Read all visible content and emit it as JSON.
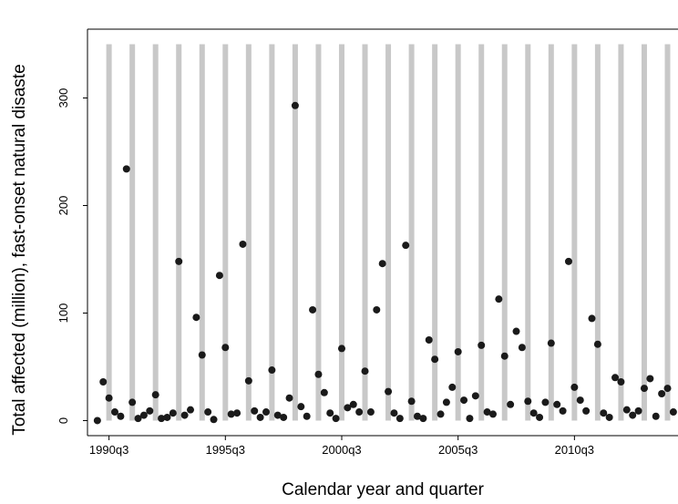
{
  "chart_data": {
    "type": "scatter",
    "x_label": "Calendar year and quarter",
    "y_label": "Total affected (million), fast-onset natural disaste",
    "x": [
      120,
      121,
      122,
      123,
      124,
      125,
      126,
      127,
      128,
      129,
      130,
      131,
      132,
      133,
      134,
      135,
      136,
      137,
      138,
      139,
      140,
      141,
      142,
      143,
      144,
      145,
      146,
      147,
      148,
      149,
      150,
      151,
      152,
      153,
      154,
      155,
      156,
      157,
      158,
      159,
      160,
      161,
      162,
      163,
      164,
      165,
      166,
      167,
      168,
      169,
      170,
      171,
      172,
      173,
      174,
      175,
      176,
      177,
      178,
      179,
      180,
      181,
      182,
      183,
      184,
      185,
      186,
      187,
      188,
      189,
      190,
      191,
      192,
      193,
      194,
      195,
      196,
      197,
      198,
      199,
      200,
      201,
      202,
      203,
      204,
      205,
      206,
      207,
      208,
      209,
      210,
      211,
      212,
      213,
      214,
      215,
      216,
      217,
      218,
      219
    ],
    "values": [
      0,
      36,
      21,
      8,
      4,
      234,
      17,
      2,
      5,
      9,
      24,
      2,
      3,
      7,
      148,
      5,
      10,
      96,
      61,
      8,
      1,
      135,
      68,
      6,
      7,
      164,
      37,
      9,
      3,
      8,
      47,
      5,
      3,
      21,
      293,
      13,
      4,
      103,
      43,
      26,
      7,
      2,
      67,
      12,
      15,
      8,
      46,
      8,
      103,
      146,
      27,
      7,
      2,
      163,
      18,
      4,
      2,
      75,
      57,
      6,
      17,
      31,
      64,
      19,
      2,
      23,
      70,
      8,
      6,
      113,
      60,
      15,
      83,
      68,
      18,
      7,
      3,
      17,
      72,
      15,
      9,
      148,
      31,
      19,
      9,
      95,
      71,
      7,
      3,
      40,
      36,
      10,
      5,
      9,
      30,
      39,
      4,
      25,
      30,
      8
    ],
    "color": "#1a1a1a",
    "bars": {
      "x": [
        122,
        126,
        130,
        134,
        138,
        142,
        146,
        150,
        154,
        158,
        162,
        166,
        170,
        174,
        178,
        182,
        186,
        190,
        194,
        198,
        202,
        206,
        210,
        214,
        218
      ],
      "values": [
        350,
        350,
        350,
        350,
        350,
        350,
        350,
        350,
        350,
        350,
        350,
        350,
        350,
        350,
        350,
        350,
        350,
        350,
        350,
        350,
        350,
        350,
        350,
        350,
        350
      ],
      "color": "#c8c8c8"
    },
    "xlim": [
      118.3,
      219.8
    ],
    "ylim": [
      -14,
      364
    ],
    "xticks": [
      {
        "value": 122,
        "label": "1990q3"
      },
      {
        "value": 142,
        "label": "1995q3"
      },
      {
        "value": 162,
        "label": "2000q3"
      },
      {
        "value": 182,
        "label": "2005q3"
      },
      {
        "value": 202,
        "label": "2010q3"
      }
    ],
    "yticks": [
      0,
      100,
      200,
      300
    ]
  }
}
